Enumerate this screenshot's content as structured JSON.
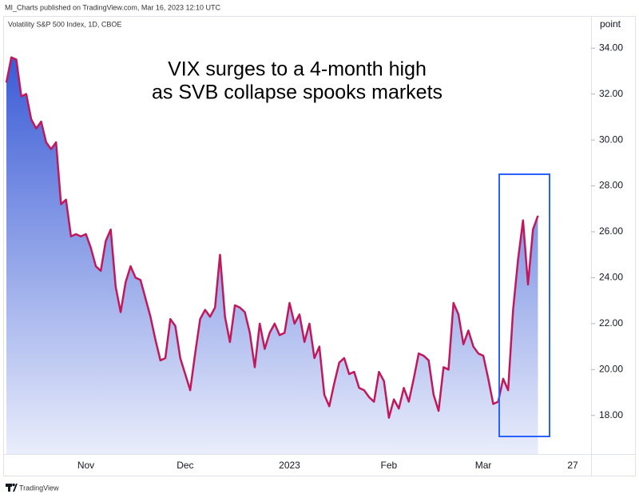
{
  "header": "MI_Charts published on TradingView.com, Mar 16, 2023 12:10 UTC",
  "footer": "TradingView",
  "chart_data": {
    "type": "area",
    "title": "VIX surges to a 4-month high",
    "subtitle": "as SVB collapse spooks markets",
    "series_label": "Volatility S&P 500 Index, 1D, CBOE",
    "y_axis_label": "point",
    "line_color": "#c2185b",
    "fill_top_color": "#3a5bd6",
    "fill_bottom_color": "#e9edfb",
    "categories": [
      null,
      null,
      null,
      null,
      null,
      null,
      null,
      null,
      null,
      null,
      null,
      null,
      null,
      null,
      null,
      null,
      "Nov",
      null,
      null,
      null,
      null,
      null,
      null,
      null,
      null,
      null,
      null,
      null,
      null,
      null,
      null,
      null,
      null,
      null,
      null,
      null,
      "Dec",
      null,
      null,
      null,
      null,
      null,
      null,
      null,
      null,
      null,
      null,
      null,
      null,
      null,
      null,
      null,
      null,
      null,
      null,
      null,
      null,
      "2023",
      null,
      null,
      null,
      null,
      null,
      null,
      null,
      null,
      null,
      null,
      null,
      null,
      null,
      null,
      null,
      null,
      null,
      null,
      null,
      "Feb",
      null,
      null,
      null,
      null,
      null,
      null,
      null,
      null,
      null,
      null,
      null,
      null,
      null,
      null,
      null,
      null,
      null,
      null,
      "Mar",
      null,
      null,
      null,
      null,
      null,
      null,
      null,
      null,
      null,
      null,
      null,
      null,
      null,
      null,
      null,
      null,
      null,
      "27"
    ],
    "values": [
      32.5,
      33.6,
      33.5,
      31.9,
      32.0,
      30.9,
      30.5,
      30.8,
      29.9,
      29.6,
      29.9,
      27.2,
      27.4,
      25.8,
      25.9,
      25.8,
      25.9,
      25.3,
      24.5,
      24.3,
      25.6,
      26.1,
      23.6,
      22.5,
      23.8,
      24.5,
      24.0,
      23.9,
      23.1,
      22.3,
      21.3,
      20.4,
      20.5,
      22.2,
      21.9,
      20.5,
      19.8,
      19.1,
      20.7,
      22.2,
      22.6,
      22.3,
      22.7,
      25.0,
      22.3,
      21.2,
      22.8,
      22.7,
      22.5,
      21.6,
      20.1,
      22.0,
      20.9,
      21.6,
      22.0,
      21.5,
      21.6,
      22.9,
      22.0,
      22.4,
      21.2,
      22.0,
      20.5,
      21.0,
      18.9,
      18.4,
      19.4,
      20.3,
      20.5,
      19.8,
      19.9,
      19.2,
      19.1,
      18.8,
      18.6,
      19.9,
      19.5,
      17.9,
      18.7,
      18.3,
      19.2,
      18.6,
      19.6,
      20.7,
      20.6,
      20.4,
      18.9,
      18.2,
      20.1,
      20.0,
      22.9,
      22.4,
      21.1,
      21.7,
      21.0,
      20.7,
      20.6,
      19.6,
      18.5,
      18.6,
      19.6,
      19.1,
      22.6,
      24.8,
      26.5,
      23.7,
      26.1,
      26.7,
      null,
      null,
      null,
      null,
      null,
      null,
      null
    ],
    "ylim": [
      16.32,
      35.4
    ],
    "yticks": [
      {
        "value": 18,
        "label": "18.00"
      },
      {
        "value": 20,
        "label": "20.00"
      },
      {
        "value": 22,
        "label": "22.00"
      },
      {
        "value": 24,
        "label": "24.00"
      },
      {
        "value": 26,
        "label": "26.00"
      },
      {
        "value": 28,
        "label": "28.00"
      },
      {
        "value": 30,
        "label": "30.00"
      },
      {
        "value": 32,
        "label": "32.00"
      },
      {
        "value": 34,
        "label": "34.00"
      }
    ],
    "grid": false
  }
}
